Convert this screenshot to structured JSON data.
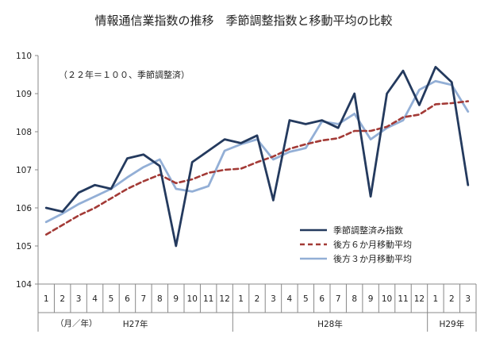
{
  "chart_data": {
    "type": "line",
    "title": "情報通信業指数の推移　季節調整指数と移動平均の比較",
    "note": "（２２年＝１００、季節調整済）",
    "x_unit_label": "（月／年）",
    "ylim": [
      104,
      110
    ],
    "yticks": [
      104,
      105,
      106,
      107,
      108,
      109,
      110
    ],
    "grid": false,
    "legend_position": "bottom-right",
    "categories": [
      "1",
      "2",
      "3",
      "4",
      "5",
      "6",
      "7",
      "8",
      "9",
      "10",
      "11",
      "12",
      "1",
      "2",
      "3",
      "4",
      "5",
      "6",
      "7",
      "8",
      "9",
      "10",
      "11",
      "12",
      "1",
      "2",
      "3"
    ],
    "year_groups": [
      {
        "label": "H27年",
        "start": 0,
        "end": 11
      },
      {
        "label": "H28年",
        "start": 12,
        "end": 23
      },
      {
        "label": "H29年",
        "start": 24,
        "end": 26
      }
    ],
    "series": [
      {
        "name": "季節調整済み指数",
        "color": "#243a5e",
        "style": "solid",
        "values": [
          106.0,
          105.9,
          106.4,
          106.6,
          106.5,
          107.3,
          107.4,
          107.1,
          105.0,
          107.2,
          107.5,
          107.8,
          107.7,
          107.9,
          106.2,
          108.3,
          108.2,
          108.3,
          108.1,
          109.0,
          106.3,
          109.0,
          109.6,
          108.7,
          109.7,
          109.3,
          106.6
        ]
      },
      {
        "name": "後方６か月移動平均",
        "color": "#a33a36",
        "style": "dashed",
        "values": [
          105.3,
          105.55,
          105.8,
          106.0,
          106.25,
          106.5,
          106.7,
          106.87,
          106.65,
          106.75,
          106.92,
          107.0,
          107.03,
          107.2,
          107.35,
          107.55,
          107.67,
          107.77,
          107.83,
          108.02,
          108.02,
          108.13,
          108.38,
          108.45,
          108.72,
          108.75,
          108.8
        ]
      },
      {
        "name": "後方３か月移動平均",
        "color": "#93afd6",
        "style": "solid",
        "values": [
          105.63,
          105.85,
          106.1,
          106.3,
          106.5,
          106.8,
          107.07,
          107.27,
          106.5,
          106.43,
          106.57,
          107.5,
          107.67,
          107.8,
          107.27,
          107.47,
          107.57,
          108.27,
          108.2,
          108.47,
          107.8,
          108.1,
          108.3,
          109.1,
          109.33,
          109.23,
          108.53
        ]
      }
    ]
  }
}
